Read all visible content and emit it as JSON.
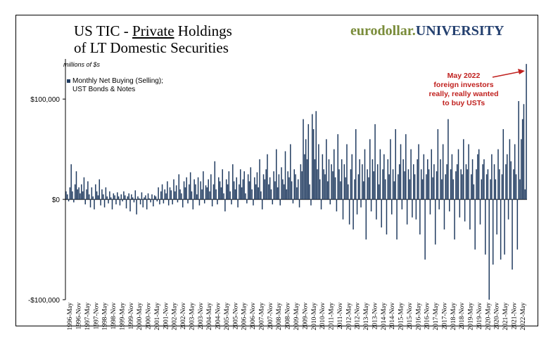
{
  "header": {
    "title_line1_pre": "US TIC - ",
    "title_line1_underlined": "Private",
    "title_line1_post": " Holdings",
    "title_line2": "of LT Domestic Securities",
    "brand_part1": "eurodollar.",
    "brand_part2": "UNIVERSITY"
  },
  "chart_data": {
    "type": "bar",
    "units_label": "millions of $s",
    "legend": [
      "Monthly Net Buying (Selling);",
      "UST Bonds & Notes"
    ],
    "annotation": [
      "May 2022",
      "foreign investors",
      "really, really wanted",
      "to buy USTs"
    ],
    "ylim": [
      -100000,
      140000
    ],
    "yticks": [
      100000,
      0,
      -100000
    ],
    "ytick_labels": [
      "$100,000",
      "$0",
      "-$100,000"
    ],
    "xtick_labels": [
      "1996-May",
      "1996-Nov",
      "1997-May",
      "1997-Nov",
      "1998-May",
      "1998-Nov",
      "1999-May",
      "1999-Nov",
      "2000-May",
      "2000-Nov",
      "2001-May",
      "2001-Nov",
      "2002-May",
      "2002-Nov",
      "2003-May",
      "2003-Nov",
      "2004-May",
      "2004-Nov",
      "2005-May",
      "2005-Nov",
      "2006-May",
      "2006-Nov",
      "2007-May",
      "2007-Nov",
      "2008-May",
      "2008-Nov",
      "2009-May",
      "2009-Nov",
      "2010-May",
      "2010-Nov",
      "2011-May",
      "2011-Nov",
      "2012-May",
      "2012-Nov",
      "2013-May",
      "2013-Nov",
      "2014-May",
      "2014-Nov",
      "2015-May",
      "2015-Nov",
      "2016-May",
      "2016-Nov",
      "2017-May",
      "2017-Nov",
      "2018-May",
      "2018-Nov",
      "2019-May",
      "2019-Nov",
      "2020-May",
      "2020-Nov",
      "2021-May",
      "2021-Nov",
      "2022-May"
    ],
    "series": [
      {
        "color": "#1f3a5f",
        "values": [
          8000,
          5000,
          -2000,
          12000,
          35000,
          8000,
          -3000,
          15000,
          28000,
          10000,
          12000,
          6000,
          15000,
          8000,
          22000,
          -5000,
          10000,
          18000,
          5000,
          -8000,
          12000,
          3000,
          -10000,
          15000,
          8000,
          4000,
          20000,
          -6000,
          10000,
          5000,
          -8000,
          12000,
          3000,
          -4000,
          8000,
          2000,
          -10000,
          6000,
          4000,
          -5000,
          7000,
          3000,
          -6000,
          5000,
          -2000,
          8000,
          4000,
          -9000,
          3000,
          6000,
          -12000,
          5000,
          2000,
          -3000,
          9000,
          -15000,
          3000,
          1000,
          -5000,
          7000,
          -8000,
          2000,
          4000,
          -10000,
          6000,
          1000,
          -3000,
          5000,
          -7000,
          4000,
          3000,
          -2000,
          12000,
          -5000,
          8000,
          15000,
          -4000,
          10000,
          6000,
          18000,
          -6000,
          12000,
          9000,
          -5000,
          20000,
          8000,
          14000,
          -3000,
          25000,
          10000,
          6000,
          -8000,
          18000,
          12000,
          22000,
          -4000,
          15000,
          27000,
          8000,
          -10000,
          20000,
          15000,
          5000,
          22000,
          -6000,
          18000,
          10000,
          28000,
          -4000,
          14000,
          12000,
          20000,
          8000,
          25000,
          -7000,
          15000,
          38000,
          10000,
          -5000,
          22000,
          18000,
          12000,
          30000,
          6000,
          -12000,
          20000,
          15000,
          28000,
          8000,
          -5000,
          35000,
          18000,
          10000,
          22000,
          -8000,
          15000,
          30000,
          12000,
          20000,
          28000,
          6000,
          -4000,
          25000,
          18000,
          32000,
          10000,
          -6000,
          22000,
          15000,
          27000,
          12000,
          40000,
          8000,
          -10000,
          25000,
          20000,
          30000,
          45000,
          15000,
          22000,
          10000,
          -5000,
          28000,
          18000,
          50000,
          12000,
          25000,
          -6000,
          32000,
          20000,
          15000,
          48000,
          10000,
          28000,
          22000,
          55000,
          18000,
          -4000,
          30000,
          25000,
          12000,
          20000,
          -8000,
          35000,
          28000,
          80000,
          45000,
          60000,
          40000,
          75000,
          15000,
          -6000,
          85000,
          70000,
          40000,
          88000,
          30000,
          55000,
          20000,
          -10000,
          45000,
          30000,
          25000,
          60000,
          18000,
          40000,
          -5000,
          35000,
          28000,
          50000,
          22000,
          -12000,
          65000,
          30000,
          18000,
          40000,
          -20000,
          35000,
          22000,
          55000,
          15000,
          -25000,
          30000,
          45000,
          -30000,
          20000,
          70000,
          -15000,
          25000,
          40000,
          -8000,
          35000,
          18000,
          50000,
          -40000,
          30000,
          22000,
          60000,
          -12000,
          40000,
          28000,
          75000,
          -20000,
          35000,
          15000,
          50000,
          -28000,
          30000,
          45000,
          20000,
          -35000,
          40000,
          25000,
          60000,
          -15000,
          30000,
          18000,
          70000,
          -40000,
          25000,
          35000,
          55000,
          -10000,
          40000,
          28000,
          65000,
          -25000,
          30000,
          20000,
          50000,
          -18000,
          35000,
          25000,
          -20000,
          40000,
          55000,
          -35000,
          30000,
          20000,
          45000,
          -60000,
          25000,
          40000,
          30000,
          -15000,
          50000,
          22000,
          35000,
          -45000,
          28000,
          70000,
          -10000,
          40000,
          20000,
          55000,
          -30000,
          25000,
          35000,
          80000,
          -12000,
          30000,
          45000,
          20000,
          -40000,
          28000,
          35000,
          50000,
          -18000,
          30000,
          25000,
          60000,
          -22000,
          35000,
          30000,
          55000,
          -30000,
          25000,
          40000,
          15000,
          -50000,
          30000,
          45000,
          50000,
          -25000,
          20000,
          35000,
          40000,
          -55000,
          25000,
          30000,
          -100000,
          20000,
          45000,
          -65000,
          35000,
          20000,
          -35000,
          50000,
          30000,
          -60000,
          25000,
          70000,
          -55000,
          35000,
          45000,
          -20000,
          60000,
          38000,
          -70000,
          30000,
          55000,
          25000,
          -50000,
          98000,
          20000,
          60000,
          80000,
          95000,
          10000,
          135000
        ]
      }
    ]
  }
}
